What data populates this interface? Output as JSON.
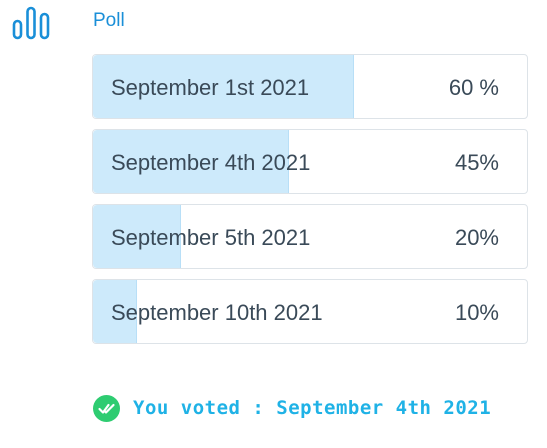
{
  "poll": {
    "title": "Poll",
    "icon": "bar-chart-icon",
    "accent_color": "#1a8fd8",
    "fill_color": "#cdeafb"
  },
  "options": [
    {
      "label": "September 1st 2021",
      "percent_text": "60 %",
      "percent": 60
    },
    {
      "label": "September 4th 2021",
      "percent_text": "45%",
      "percent": 45
    },
    {
      "label": "September 5th 2021",
      "percent_text": "20%",
      "percent": 20
    },
    {
      "label": "September 10th 2021",
      "percent_text": "10%",
      "percent": 10
    }
  ],
  "vote_status": {
    "text": "You voted : September 4th 2021",
    "icon": "check-circle-icon",
    "icon_color": "#2ecc71",
    "text_color": "#1fb2e6"
  }
}
